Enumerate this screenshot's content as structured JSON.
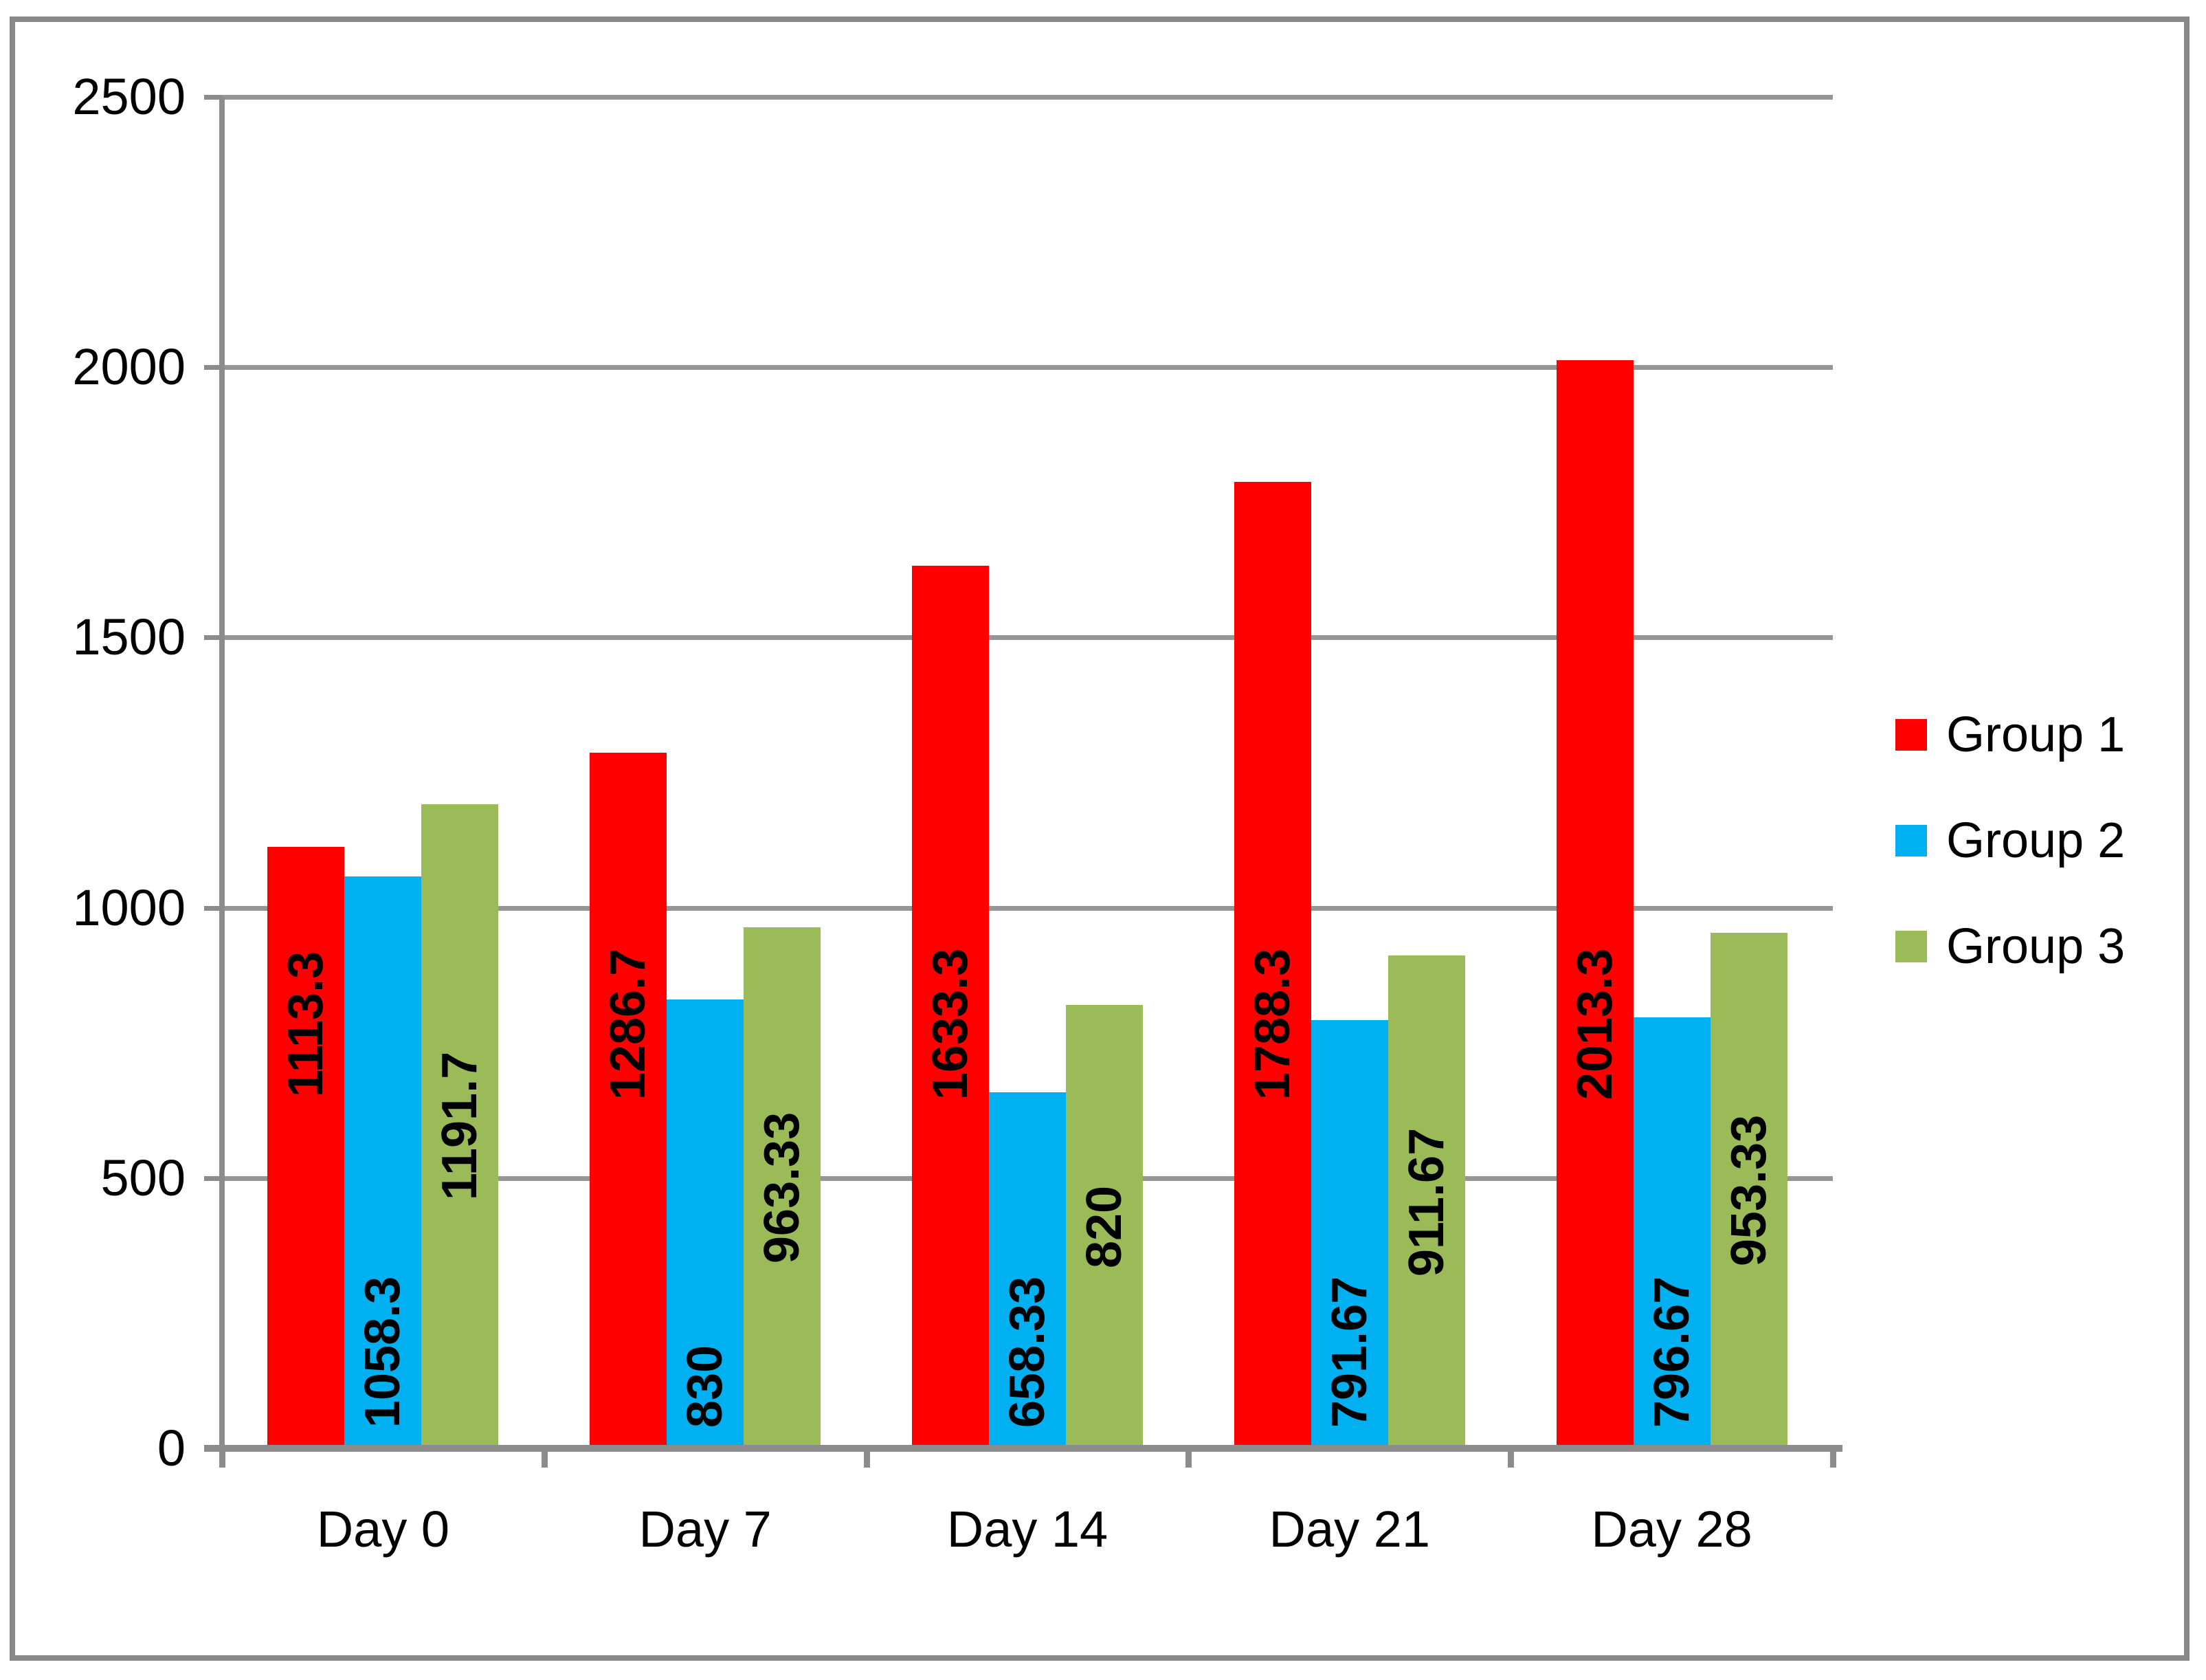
{
  "chart_data": {
    "type": "bar",
    "title": "",
    "xlabel": "",
    "ylabel": "",
    "categories": [
      "Day 0",
      "Day 7",
      "Day 14",
      "Day 21",
      "Day 28"
    ],
    "series": [
      {
        "name": "Group 1",
        "color": "#FF0000",
        "values": [
          1113.3,
          1286.7,
          1633.3,
          1788.3,
          2013.3
        ],
        "labels": [
          "1113.3",
          "1286.7",
          "1633.3",
          "1788.3",
          "2013.3"
        ]
      },
      {
        "name": "Group 2",
        "color": "#00B0F0",
        "values": [
          1058.3,
          830,
          658.33,
          791.67,
          796.67
        ],
        "labels": [
          "1058.3",
          "830",
          "658.33",
          "791.67",
          "796.67"
        ]
      },
      {
        "name": "Group 3",
        "color": "#9BBB59",
        "values": [
          1191.7,
          963.33,
          820,
          911.67,
          953.33
        ],
        "labels": [
          "1191.7",
          "963.33",
          "820",
          "911.67",
          "953.33"
        ]
      }
    ],
    "ylim": [
      0,
      2500
    ],
    "ytick_interval": 500,
    "yticks": [
      "0",
      "500",
      "1000",
      "1500",
      "2000",
      "2500"
    ],
    "grid": true,
    "legend_position": "right",
    "data_labels": "rotated-vertical-inside-bar"
  }
}
